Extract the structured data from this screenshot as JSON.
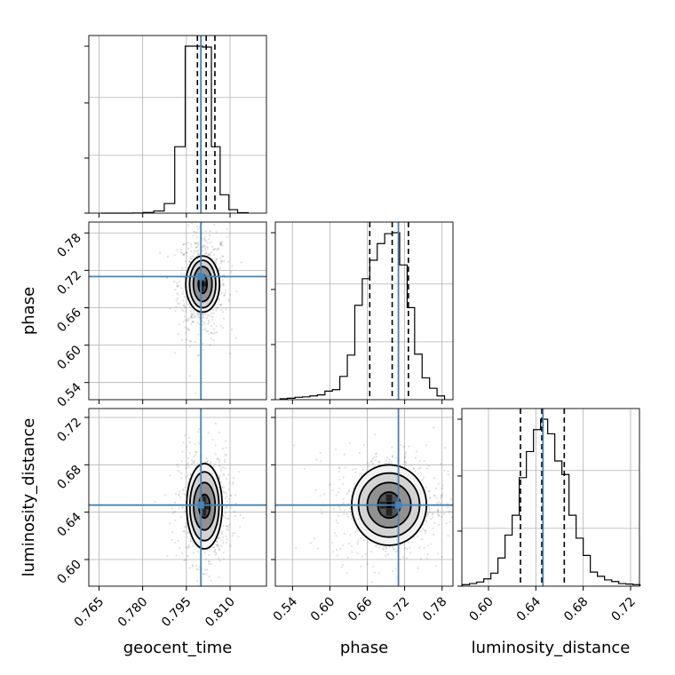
{
  "chart_data": {
    "type": "corner",
    "parameters": [
      "geocent_time",
      "phase",
      "luminosity_distance"
    ],
    "axes": {
      "geocent_time": {
        "label": "geocent_time",
        "range": [
          0.7615,
          0.8225
        ],
        "ticks": [
          "0.765",
          "0.780",
          "0.795",
          "0.810"
        ],
        "truth": 0.8,
        "quantiles": [
          0.7988,
          0.8018,
          0.8048
        ]
      },
      "phase": {
        "label": "phase",
        "range": [
          0.5125,
          0.7975
        ],
        "ticks": [
          "0.54",
          "0.60",
          "0.66",
          "0.72",
          "0.78"
        ],
        "ticks_y": [
          "0.54",
          "0.60",
          "0.66",
          "0.72",
          "0.78"
        ],
        "truth": 0.71,
        "quantiles": [
          0.664,
          0.7,
          0.726
        ]
      },
      "luminosity_distance": {
        "label": "luminosity_distance",
        "range": [
          0.5775,
          0.7275
        ],
        "ticks": [
          "0.60",
          "0.64",
          "0.68",
          "0.72"
        ],
        "ticks_y": [
          "0.60",
          "0.64",
          "0.68",
          "0.72"
        ],
        "truth": 0.646,
        "quantiles": [
          0.627,
          0.645,
          0.664
        ]
      }
    },
    "histograms": {
      "geocent_time": {
        "bins": [
          0.7658,
          0.7694,
          0.773,
          0.7766,
          0.7802,
          0.7838,
          0.7874,
          0.791,
          0.7946,
          0.7976,
          0.8006,
          0.8036,
          0.8066,
          0.8096,
          0.8126,
          0.8162
        ],
        "values": [
          0,
          0,
          0,
          0.3,
          1.5,
          5,
          22,
          152,
          382,
          382,
          380,
          152,
          42,
          8,
          1
        ]
      },
      "phase": {
        "bins": [
          0.52,
          0.532,
          0.544,
          0.556,
          0.568,
          0.58,
          0.592,
          0.604,
          0.616,
          0.628,
          0.64,
          0.652,
          0.664,
          0.676,
          0.688,
          0.7,
          0.712,
          0.724,
          0.736,
          0.748,
          0.76,
          0.772,
          0.784
        ],
        "values": [
          2,
          3,
          5,
          6,
          8,
          10,
          18,
          21,
          49,
          94,
          199,
          255,
          294,
          329,
          350,
          352,
          284,
          194,
          96,
          46,
          24,
          8
        ]
      },
      "luminosity_distance": {
        "bins": [
          0.578,
          0.584,
          0.59,
          0.596,
          0.602,
          0.608,
          0.614,
          0.62,
          0.626,
          0.632,
          0.638,
          0.644,
          0.65,
          0.656,
          0.662,
          0.668,
          0.674,
          0.68,
          0.686,
          0.692,
          0.698,
          0.704,
          0.71,
          0.716,
          0.722,
          0.728
        ],
        "values": [
          3,
          5,
          8,
          14,
          25,
          54,
          98,
          136,
          208,
          258,
          300,
          320,
          292,
          240,
          214,
          136,
          92,
          59,
          27,
          19,
          12,
          9,
          5,
          4,
          3
        ]
      }
    },
    "joint": [
      {
        "x": "geocent_time",
        "y": "phase",
        "center": [
          0.8006,
          0.698
        ],
        "spread": [
          0.0028,
          0.029
        ],
        "contours": [
          [
            0.0015,
            0.015
          ],
          [
            0.0032,
            0.028
          ],
          [
            0.0045,
            0.038
          ],
          [
            0.0058,
            0.045
          ]
        ]
      },
      {
        "x": "geocent_time",
        "y": "luminosity_distance",
        "center": [
          0.8012,
          0.645
        ],
        "spread": [
          0.003,
          0.016
        ],
        "contours": [
          [
            0.0019,
            0.01
          ],
          [
            0.0037,
            0.02
          ],
          [
            0.005,
            0.029
          ],
          [
            0.0061,
            0.036
          ]
        ]
      },
      {
        "x": "phase",
        "y": "luminosity_distance",
        "center": [
          0.695,
          0.646
        ],
        "spread": [
          0.03,
          0.016
        ],
        "contours": [
          [
            0.018,
            0.011
          ],
          [
            0.035,
            0.019
          ],
          [
            0.049,
            0.027
          ],
          [
            0.06,
            0.034
          ]
        ]
      }
    ],
    "quantile_line_color": "#000000",
    "truth_color": "#4682b4",
    "grid": true
  }
}
